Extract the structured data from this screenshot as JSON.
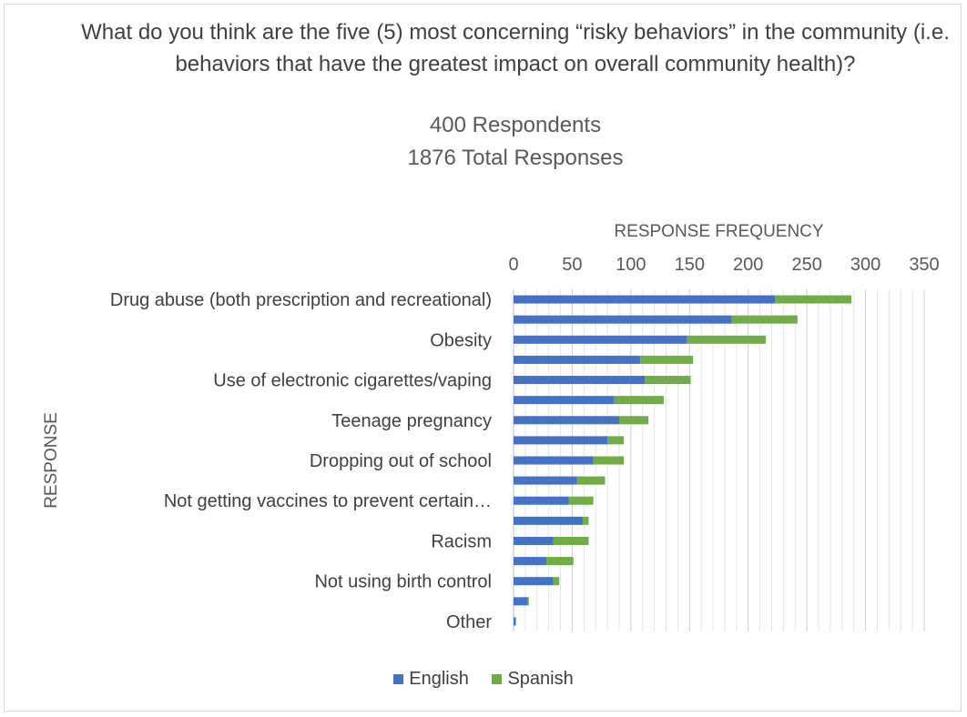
{
  "chart_data": {
    "type": "bar",
    "orientation": "horizontal",
    "stacked": true,
    "title": "What do you think are the five (5) most concerning “risky behaviors” in the community (i.e. behaviors that have the greatest impact on overall community health)?",
    "subtitles": [
      "400 Respondents",
      "1876 Total Responses"
    ],
    "xlabel": "RESPONSE FREQUENCY",
    "ylabel": "RESPONSE",
    "xlim": [
      0,
      350
    ],
    "xticks": [
      0,
      50,
      100,
      150,
      200,
      250,
      300,
      350
    ],
    "grid": true,
    "legend_position": "bottom",
    "categories": [
      "Drug abuse (both prescription and recreational)",
      "",
      "Obesity",
      "",
      "Use of electronic cigarettes/vaping",
      "",
      "Teenage pregnancy",
      "",
      "Dropping out of school",
      "",
      "Not getting vaccines to prevent certain…",
      "",
      "Racism",
      "",
      "Not using birth control",
      "",
      "Other"
    ],
    "series": [
      {
        "name": "English",
        "color": "#4472c4",
        "values": [
          223,
          186,
          148,
          108,
          112,
          86,
          90,
          80,
          68,
          54,
          47,
          59,
          34,
          28,
          34,
          12,
          2
        ]
      },
      {
        "name": "Spanish",
        "color": "#70ad47",
        "values": [
          65,
          56,
          67,
          45,
          39,
          42,
          25,
          14,
          26,
          24,
          21,
          5,
          30,
          23,
          5,
          1,
          0
        ]
      }
    ]
  }
}
